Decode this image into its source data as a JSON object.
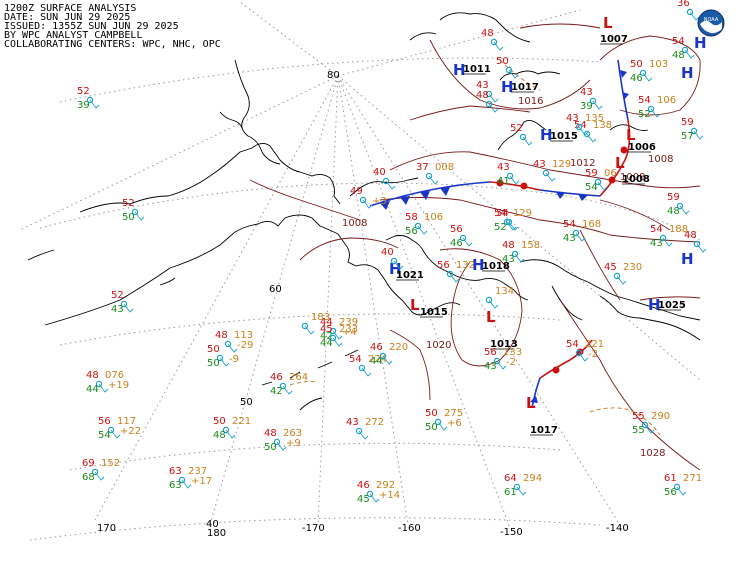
{
  "header": {
    "line1": "1200Z SURFACE ANALYSIS",
    "line2": "DATE: SUN JUN 29 2025",
    "line3": "ISSUED: 1355Z SUN JUN 29 2025",
    "line4": "BY WPC ANALYST CAMPBELL",
    "line5": "COLLABORATING CENTERS: WPC, NHC, OPC"
  },
  "logo": {
    "icon": "noaa-logo-icon",
    "label": "NOAA",
    "color": "#1a5aa8"
  },
  "colors": {
    "high": "#1a36c8",
    "low": "#cc1111",
    "isobar": "#7a1a1a",
    "cold_front": "#1a36c8",
    "warm_front": "#cc1111",
    "trough": "#d07a2a",
    "temperature": "#cc1111",
    "dewpoint": "#1a8a1a",
    "pressure": "#c8801a",
    "station": "#1aa3c8",
    "graticule": "#999999",
    "coastline": "#000000"
  },
  "graticule_labels": {
    "lat": [
      "80",
      "60",
      "50",
      "40"
    ],
    "lon": [
      "170",
      "180",
      "-170",
      "-160",
      "-150",
      "-140"
    ]
  },
  "pressure_centers": [
    {
      "type": "H",
      "value": "1011"
    },
    {
      "type": "H",
      "value": "1017"
    },
    {
      "type": "H",
      "value": "1015"
    },
    {
      "type": "H",
      "value": ""
    },
    {
      "type": "H",
      "value": "1021"
    },
    {
      "type": "H",
      "value": "1018"
    },
    {
      "type": "H",
      "value": "1025"
    },
    {
      "type": "H",
      "value": ""
    },
    {
      "type": "H",
      "value": ""
    },
    {
      "type": "L",
      "value": "1007"
    },
    {
      "type": "L",
      "value": "1006"
    },
    {
      "type": "L",
      "value": "1008"
    },
    {
      "type": "L",
      "value": "1015"
    },
    {
      "type": "L",
      "value": "1013"
    },
    {
      "type": "L",
      "value": "1017"
    }
  ],
  "isobar_labels": [
    "1016",
    "1012",
    "1008",
    "1008",
    "1020",
    "1028",
    "1008"
  ],
  "stations": [
    {
      "t": "52",
      "d": "39"
    },
    {
      "t": "52",
      "d": "50"
    },
    {
      "t": "52",
      "d": "43"
    },
    {
      "t": "48",
      "p": "113",
      "d": "",
      "tend": "-29"
    },
    {
      "t": "50",
      "p": "",
      "d": "50",
      "tend": "-9"
    },
    {
      "t": "48",
      "p": "076",
      "d": "44",
      "tend": "+19"
    },
    {
      "t": "56",
      "p": "117",
      "d": "54",
      "tend": "+22"
    },
    {
      "t": "69",
      "p": "152",
      "d": "68"
    },
    {
      "t": "50",
      "p": "221",
      "d": "48"
    },
    {
      "t": "48",
      "p": "263",
      "d": "50",
      "tend": "+9"
    },
    {
      "t": "63",
      "p": "237",
      "d": "63",
      "tend": "+17"
    },
    {
      "t": "46",
      "p": "264",
      "d": "42"
    },
    {
      "t": "44",
      "p": "239",
      "d": "42",
      "tend": "+4"
    },
    {
      "t": "45",
      "p": "233",
      "d": "44"
    },
    {
      "t": "",
      "p": "183",
      "d": ""
    },
    {
      "t": "54",
      "p": "224",
      "d": ""
    },
    {
      "t": "46",
      "p": "220",
      "d": "44"
    },
    {
      "t": "43",
      "p": "272",
      "d": ""
    },
    {
      "t": "50",
      "p": "275",
      "d": "50",
      "tend": "+6"
    },
    {
      "t": "46",
      "p": "292",
      "d": "45",
      "tend": "+14"
    },
    {
      "t": "64",
      "p": "294",
      "d": "61"
    },
    {
      "t": "55",
      "p": "290",
      "d": "55"
    },
    {
      "t": "61",
      "p": "271",
      "d": "56"
    },
    {
      "t": "54",
      "p": "221",
      "d": "",
      "tend": "-2"
    },
    {
      "t": "56",
      "p": "133",
      "d": "43",
      "tend": "-2"
    },
    {
      "t": "",
      "p": "134",
      "d": ""
    },
    {
      "t": "56",
      "p": "132",
      "d": ""
    },
    {
      "t": "48",
      "p": "158",
      "d": "43"
    },
    {
      "t": "54",
      "p": "129",
      "d": "52"
    },
    {
      "t": "54",
      "p": "168",
      "d": "43"
    },
    {
      "t": "45",
      "p": "230",
      "d": ""
    },
    {
      "t": "54",
      "p": "188",
      "d": "43"
    },
    {
      "t": "54",
      "p": "138",
      "d": ""
    },
    {
      "t": "43",
      "p": "",
      "d": "41"
    },
    {
      "t": "58",
      "p": "106",
      "d": "56"
    },
    {
      "t": "56",
      "p": "",
      "d": "46"
    },
    {
      "t": "37",
      "p": "008",
      "d": ""
    },
    {
      "t": "40",
      "p": "",
      "d": ""
    },
    {
      "t": "49",
      "p": "",
      "d": "",
      "tend": "+3"
    },
    {
      "t": "43",
      "p": "129",
      "d": ""
    },
    {
      "t": "59",
      "p": "06",
      "d": "54"
    },
    {
      "t": "59",
      "p": "",
      "d": "48"
    },
    {
      "t": "48",
      "p": "",
      "d": ""
    },
    {
      "t": "50",
      "p": "103",
      "d": "46"
    },
    {
      "t": "54",
      "p": "106",
      "d": "52"
    },
    {
      "t": "59",
      "p": "",
      "d": "57"
    },
    {
      "t": "43",
      "p": "135",
      "d": ""
    },
    {
      "t": "52",
      "p": "",
      "d": ""
    },
    {
      "t": "43",
      "p": "",
      "d": "39"
    },
    {
      "t": "43",
      "p": "",
      "d": ""
    },
    {
      "t": "48",
      "p": "",
      "d": ""
    },
    {
      "t": "54",
      "p": "",
      "d": "48"
    },
    {
      "t": "54",
      "p": "",
      "d": ""
    },
    {
      "t": "50",
      "p": "",
      "d": ""
    },
    {
      "t": "48",
      "p": "",
      "d": ""
    },
    {
      "t": "40",
      "p": "",
      "d": ""
    },
    {
      "t": "36",
      "p": "",
      "d": ""
    }
  ]
}
